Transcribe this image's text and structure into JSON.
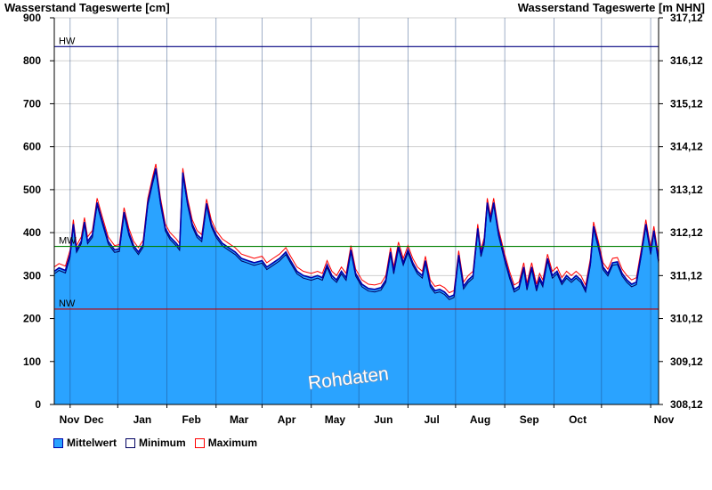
{
  "header": {
    "left_title": "Wasserstand Tageswerte [cm]",
    "right_title": "Wasserstand Tageswerte [m NHN]"
  },
  "colors": {
    "fill": "#2aa3ff",
    "mean_line": "#0000aa",
    "min_line": "#000060",
    "max_line": "#ff0000",
    "hw_line": "#000080",
    "mw_line": "#008000",
    "nw_line": "#c00000",
    "grid": "#d0d0d0"
  },
  "watermark": "Rohdaten",
  "legend": {
    "mean": "Mittelwert",
    "min": "Minimum",
    "max": "Maximum"
  },
  "chart_data": {
    "type": "area",
    "ylim": [
      0,
      900
    ],
    "y_ticks": [
      0,
      100,
      200,
      300,
      400,
      500,
      600,
      700,
      800,
      900
    ],
    "y2_ticks": [
      "308,12",
      "309,12",
      "310,12",
      "311,12",
      "312,12",
      "313,12",
      "314,12",
      "315,12",
      "316,12",
      "317,12"
    ],
    "x_range": [
      "2023-10-22",
      "2024-11-06"
    ],
    "month_labels": [
      "Nov",
      "Dec",
      "Jan",
      "Feb",
      "Mar",
      "Apr",
      "May",
      "Jun",
      "Jul",
      "Aug",
      "Sep",
      "Oct",
      "Nov"
    ],
    "month_boundaries": [
      "2023-11-01",
      "2023-12-01",
      "2024-01-01",
      "2024-02-01",
      "2024-03-01",
      "2024-04-01",
      "2024-05-01",
      "2024-06-01",
      "2024-07-01",
      "2024-08-01",
      "2024-09-01",
      "2024-10-01",
      "2024-11-01"
    ],
    "reference_lines": [
      {
        "name": "HW",
        "value": 833
      },
      {
        "name": "MW",
        "value": 368
      },
      {
        "name": "NW",
        "value": 222
      }
    ],
    "series": [
      {
        "name": "Mittelwert",
        "points": [
          [
            "2023-10-22",
            310
          ],
          [
            "2023-10-25",
            318
          ],
          [
            "2023-10-29",
            312
          ],
          [
            "2023-11-01",
            350
          ],
          [
            "2023-11-03",
            420
          ],
          [
            "2023-11-05",
            360
          ],
          [
            "2023-11-08",
            380
          ],
          [
            "2023-11-10",
            425
          ],
          [
            "2023-11-12",
            380
          ],
          [
            "2023-11-15",
            395
          ],
          [
            "2023-11-18",
            470
          ],
          [
            "2023-11-21",
            430
          ],
          [
            "2023-11-25",
            380
          ],
          [
            "2023-11-29",
            360
          ],
          [
            "2023-12-02",
            362
          ],
          [
            "2023-12-05",
            448
          ],
          [
            "2023-12-08",
            400
          ],
          [
            "2023-12-11",
            370
          ],
          [
            "2023-12-14",
            355
          ],
          [
            "2023-12-17",
            372
          ],
          [
            "2023-12-20",
            470
          ],
          [
            "2023-12-23",
            520
          ],
          [
            "2023-12-25",
            550
          ],
          [
            "2023-12-28",
            470
          ],
          [
            "2023-12-31",
            410
          ],
          [
            "2024-01-03",
            390
          ],
          [
            "2024-01-07",
            375
          ],
          [
            "2024-01-09",
            365
          ],
          [
            "2024-01-11",
            540
          ],
          [
            "2024-01-14",
            470
          ],
          [
            "2024-01-17",
            420
          ],
          [
            "2024-01-20",
            395
          ],
          [
            "2024-01-23",
            385
          ],
          [
            "2024-01-26",
            468
          ],
          [
            "2024-01-29",
            420
          ],
          [
            "2024-02-01",
            395
          ],
          [
            "2024-02-05",
            375
          ],
          [
            "2024-02-09",
            365
          ],
          [
            "2024-02-13",
            355
          ],
          [
            "2024-02-17",
            340
          ],
          [
            "2024-02-21",
            335
          ],
          [
            "2024-02-25",
            330
          ],
          [
            "2024-03-01",
            335
          ],
          [
            "2024-03-04",
            320
          ],
          [
            "2024-03-08",
            330
          ],
          [
            "2024-03-12",
            340
          ],
          [
            "2024-03-16",
            355
          ],
          [
            "2024-03-19",
            335
          ],
          [
            "2024-03-23",
            310
          ],
          [
            "2024-03-27",
            300
          ],
          [
            "2024-04-01",
            295
          ],
          [
            "2024-04-05",
            300
          ],
          [
            "2024-04-08",
            295
          ],
          [
            "2024-04-11",
            325
          ],
          [
            "2024-04-14",
            300
          ],
          [
            "2024-04-17",
            290
          ],
          [
            "2024-04-20",
            310
          ],
          [
            "2024-04-23",
            295
          ],
          [
            "2024-04-26",
            360
          ],
          [
            "2024-04-29",
            305
          ],
          [
            "2024-05-03",
            280
          ],
          [
            "2024-05-07",
            270
          ],
          [
            "2024-05-11",
            268
          ],
          [
            "2024-05-15",
            272
          ],
          [
            "2024-05-18",
            290
          ],
          [
            "2024-05-21",
            355
          ],
          [
            "2024-05-23",
            310
          ],
          [
            "2024-05-26",
            368
          ],
          [
            "2024-05-29",
            330
          ],
          [
            "2024-06-01",
            360
          ],
          [
            "2024-06-04",
            330
          ],
          [
            "2024-06-07",
            310
          ],
          [
            "2024-06-10",
            300
          ],
          [
            "2024-06-12",
            335
          ],
          [
            "2024-06-15",
            280
          ],
          [
            "2024-06-18",
            265
          ],
          [
            "2024-06-21",
            268
          ],
          [
            "2024-06-24",
            262
          ],
          [
            "2024-06-27",
            250
          ],
          [
            "2024-06-30",
            255
          ],
          [
            "2024-07-03",
            348
          ],
          [
            "2024-07-06",
            275
          ],
          [
            "2024-07-09",
            290
          ],
          [
            "2024-07-12",
            300
          ],
          [
            "2024-07-15",
            410
          ],
          [
            "2024-07-17",
            350
          ],
          [
            "2024-07-19",
            378
          ],
          [
            "2024-07-21",
            470
          ],
          [
            "2024-07-23",
            430
          ],
          [
            "2024-07-25",
            470
          ],
          [
            "2024-07-28",
            400
          ],
          [
            "2024-08-01",
            340
          ],
          [
            "2024-08-04",
            300
          ],
          [
            "2024-08-07",
            268
          ],
          [
            "2024-08-10",
            275
          ],
          [
            "2024-08-13",
            320
          ],
          [
            "2024-08-15",
            272
          ],
          [
            "2024-08-18",
            320
          ],
          [
            "2024-08-21",
            270
          ],
          [
            "2024-08-23",
            295
          ],
          [
            "2024-08-25",
            280
          ],
          [
            "2024-08-28",
            340
          ],
          [
            "2024-08-31",
            300
          ],
          [
            "2024-09-03",
            310
          ],
          [
            "2024-09-06",
            285
          ],
          [
            "2024-09-09",
            300
          ],
          [
            "2024-09-12",
            290
          ],
          [
            "2024-09-15",
            300
          ],
          [
            "2024-09-18",
            290
          ],
          [
            "2024-09-21",
            268
          ],
          [
            "2024-09-24",
            330
          ],
          [
            "2024-09-26",
            415
          ],
          [
            "2024-09-29",
            370
          ],
          [
            "2024-10-02",
            320
          ],
          [
            "2024-10-05",
            305
          ],
          [
            "2024-10-08",
            330
          ],
          [
            "2024-10-11",
            332
          ],
          [
            "2024-10-14",
            305
          ],
          [
            "2024-10-17",
            290
          ],
          [
            "2024-10-20",
            280
          ],
          [
            "2024-10-23",
            285
          ],
          [
            "2024-10-26",
            350
          ],
          [
            "2024-10-29",
            420
          ],
          [
            "2024-11-01",
            355
          ],
          [
            "2024-11-03",
            405
          ],
          [
            "2024-11-06",
            335
          ]
        ]
      },
      {
        "name": "Minimum",
        "offset_from_mean": -6
      },
      {
        "name": "Maximum",
        "offset_from_mean": 10
      }
    ]
  }
}
